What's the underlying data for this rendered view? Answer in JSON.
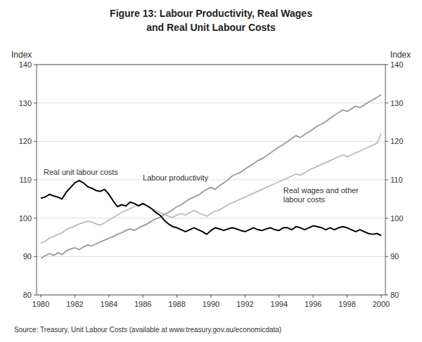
{
  "chart_data": {
    "type": "line",
    "title": "Figure 13: Labour Productivity, Real Wages",
    "subtitle": "and Real Unit Labour Costs",
    "source": "Source: Treasury, Unit Labour Costs (available at www.treasury.gov.au/economicdata)",
    "ylabel": "Index",
    "y2label": "Index",
    "xlim": [
      1979.75,
      2000.25
    ],
    "xticks": [
      1980,
      1982,
      1984,
      1986,
      1988,
      1990,
      1992,
      1994,
      1996,
      1998,
      2000
    ],
    "ylim": [
      80,
      140
    ],
    "yticks": [
      80,
      90,
      100,
      110,
      120,
      130,
      140
    ],
    "y2lim": [
      80,
      140
    ],
    "y2ticks": [
      80,
      90,
      100,
      110,
      120,
      130,
      140
    ],
    "grid": true,
    "x": [
      1980.0,
      1980.25,
      1980.5,
      1980.75,
      1981.0,
      1981.25,
      1981.5,
      1981.75,
      1982.0,
      1982.25,
      1982.5,
      1982.75,
      1983.0,
      1983.25,
      1983.5,
      1983.75,
      1984.0,
      1984.25,
      1984.5,
      1984.75,
      1985.0,
      1985.25,
      1985.5,
      1985.75,
      1986.0,
      1986.25,
      1986.5,
      1986.75,
      1987.0,
      1987.25,
      1987.5,
      1987.75,
      1988.0,
      1988.25,
      1988.5,
      1988.75,
      1989.0,
      1989.25,
      1989.5,
      1989.75,
      1990.0,
      1990.25,
      1990.5,
      1990.75,
      1991.0,
      1991.25,
      1991.5,
      1991.75,
      1992.0,
      1992.25,
      1992.5,
      1992.75,
      1993.0,
      1993.25,
      1993.5,
      1993.75,
      1994.0,
      1994.25,
      1994.5,
      1994.75,
      1995.0,
      1995.25,
      1995.5,
      1995.75,
      1996.0,
      1996.25,
      1996.5,
      1996.75,
      1997.0,
      1997.25,
      1997.5,
      1997.75,
      1998.0,
      1998.25,
      1998.5,
      1998.75,
      1999.0,
      1999.25,
      1999.5,
      1999.75,
      2000.0
    ],
    "series": [
      {
        "name": "Labour productivity",
        "color": "#999999",
        "values": [
          89.5,
          90.2,
          90.8,
          90.3,
          91.0,
          90.5,
          91.5,
          92.0,
          92.3,
          91.8,
          92.5,
          93.0,
          92.8,
          93.3,
          93.8,
          94.3,
          94.8,
          95.2,
          95.8,
          96.2,
          96.8,
          97.2,
          96.8,
          97.5,
          98.0,
          98.5,
          99.2,
          99.8,
          100.2,
          101.0,
          101.5,
          102.2,
          103.0,
          103.5,
          104.3,
          105.0,
          105.5,
          106.0,
          106.8,
          107.5,
          108.0,
          107.5,
          108.5,
          109.2,
          110.0,
          111.0,
          111.5,
          112.0,
          112.8,
          113.5,
          114.2,
          115.0,
          115.5,
          116.2,
          117.0,
          117.8,
          118.5,
          119.2,
          120.0,
          120.8,
          121.5,
          121.0,
          121.8,
          122.5,
          123.2,
          124.0,
          124.5,
          125.2,
          126.0,
          126.8,
          127.5,
          128.2,
          127.8,
          128.5,
          129.2,
          128.8,
          129.5,
          130.2,
          130.8,
          131.5,
          132.2
        ]
      },
      {
        "name": "Real wages and other\nlabour costs",
        "color": "#bbbbbb",
        "values": [
          93.5,
          94.0,
          94.8,
          95.2,
          95.8,
          96.2,
          97.0,
          97.5,
          98.0,
          98.5,
          98.8,
          99.2,
          99.0,
          98.5,
          98.2,
          98.8,
          99.5,
          100.2,
          100.8,
          101.5,
          102.0,
          102.5,
          103.0,
          103.5,
          103.8,
          103.2,
          102.5,
          102.0,
          101.5,
          101.0,
          100.5,
          100.2,
          100.8,
          101.2,
          100.8,
          101.5,
          102.0,
          101.5,
          101.0,
          100.5,
          101.2,
          101.8,
          102.2,
          102.8,
          103.5,
          104.0,
          104.5,
          105.0,
          105.5,
          106.0,
          106.5,
          107.0,
          107.5,
          108.0,
          108.5,
          109.0,
          109.5,
          110.0,
          110.5,
          111.0,
          111.5,
          111.2,
          111.8,
          112.5,
          113.0,
          113.5,
          114.0,
          114.5,
          115.0,
          115.5,
          116.0,
          116.5,
          116.0,
          116.5,
          117.0,
          117.5,
          118.0,
          118.5,
          119.0,
          119.5,
          122.0
        ]
      },
      {
        "name": "Real unit labour costs",
        "color": "#000000",
        "values": [
          105.2,
          105.5,
          106.2,
          105.8,
          105.5,
          105.0,
          106.8,
          108.0,
          109.2,
          109.8,
          109.2,
          108.2,
          107.8,
          107.2,
          107.0,
          107.5,
          106.2,
          104.5,
          103.0,
          103.5,
          103.2,
          104.2,
          103.8,
          103.2,
          103.8,
          103.2,
          102.5,
          101.5,
          100.8,
          99.5,
          98.5,
          97.8,
          97.5,
          97.0,
          96.5,
          97.0,
          97.5,
          97.0,
          96.5,
          95.8,
          96.8,
          97.5,
          97.2,
          96.8,
          97.2,
          97.5,
          97.2,
          96.8,
          96.5,
          97.0,
          97.5,
          97.0,
          96.8,
          97.2,
          97.5,
          97.0,
          96.8,
          97.5,
          97.5,
          97.0,
          97.8,
          97.5,
          97.0,
          97.5,
          98.0,
          97.8,
          97.5,
          97.0,
          97.5,
          97.0,
          97.5,
          97.8,
          97.5,
          97.0,
          96.5,
          97.0,
          96.5,
          96.0,
          95.8,
          96.0,
          95.5
        ]
      }
    ]
  }
}
